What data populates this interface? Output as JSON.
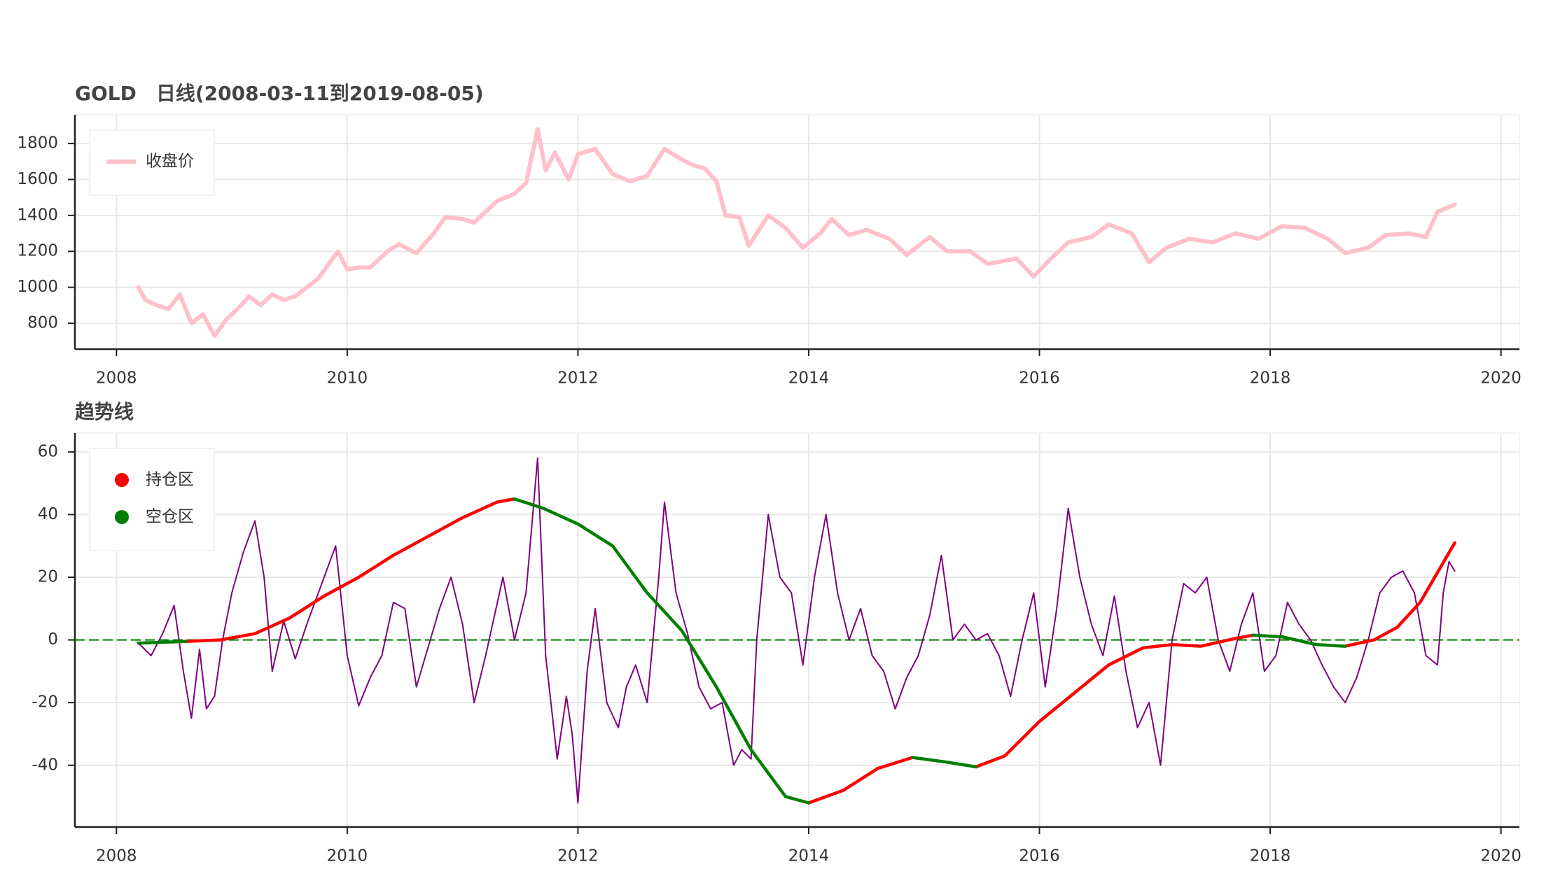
{
  "chart_data": [
    {
      "type": "line",
      "title": "GOLD　日线(2008-03-11到2019-08-05)",
      "xlim": [
        2007.64,
        2020.16
      ],
      "xticks": [
        2008,
        2010,
        2012,
        2014,
        2016,
        2018,
        2020
      ],
      "ylim": [
        656,
        1960
      ],
      "yticks": [
        800,
        1000,
        1200,
        1400,
        1600,
        1800
      ],
      "grid": true,
      "legend": "upper left",
      "legend_marker": "line",
      "series": [
        {
          "name": "收盘价",
          "color": "#ffc0cb",
          "x": [
            2008.19,
            2008.25,
            2008.35,
            2008.45,
            2008.55,
            2008.65,
            2008.75,
            2008.85,
            2008.95,
            2009.05,
            2009.15,
            2009.25,
            2009.35,
            2009.45,
            2009.55,
            2009.65,
            2009.75,
            2009.92,
            2010.0,
            2010.1,
            2010.2,
            2010.35,
            2010.45,
            2010.6,
            2010.75,
            2010.85,
            2011.0,
            2011.1,
            2011.3,
            2011.45,
            2011.55,
            2011.65,
            2011.72,
            2011.8,
            2011.92,
            2012.0,
            2012.15,
            2012.3,
            2012.45,
            2012.6,
            2012.75,
            2012.9,
            2013.0,
            2013.1,
            2013.2,
            2013.28,
            2013.4,
            2013.48,
            2013.55,
            2013.65,
            2013.8,
            2013.95,
            2014.1,
            2014.2,
            2014.35,
            2014.5,
            2014.7,
            2014.85,
            2015.05,
            2015.2,
            2015.4,
            2015.55,
            2015.8,
            2015.95,
            2016.1,
            2016.25,
            2016.45,
            2016.6,
            2016.8,
            2016.95,
            2017.1,
            2017.3,
            2017.5,
            2017.7,
            2017.9,
            2018.1,
            2018.3,
            2018.5,
            2018.65,
            2018.85,
            2019.0,
            2019.2,
            2019.35,
            2019.45,
            2019.6
          ],
          "values": [
            1000,
            930,
            900,
            880,
            960,
            800,
            850,
            730,
            820,
            880,
            950,
            900,
            960,
            930,
            950,
            1000,
            1050,
            1200,
            1100,
            1110,
            1110,
            1200,
            1240,
            1190,
            1300,
            1390,
            1380,
            1360,
            1480,
            1520,
            1580,
            1880,
            1650,
            1750,
            1600,
            1740,
            1770,
            1630,
            1590,
            1620,
            1770,
            1710,
            1680,
            1660,
            1590,
            1400,
            1390,
            1230,
            1300,
            1400,
            1330,
            1220,
            1300,
            1380,
            1290,
            1320,
            1270,
            1180,
            1280,
            1200,
            1200,
            1130,
            1160,
            1060,
            1160,
            1250,
            1280,
            1350,
            1300,
            1140,
            1220,
            1270,
            1250,
            1300,
            1270,
            1340,
            1330,
            1270,
            1190,
            1220,
            1290,
            1300,
            1280,
            1420,
            1460
          ]
        }
      ]
    },
    {
      "type": "line",
      "title": "趋势线",
      "xlim": [
        2007.64,
        2020.16
      ],
      "xticks": [
        2008,
        2010,
        2012,
        2014,
        2016,
        2018,
        2020
      ],
      "ylim": [
        -59.7,
        66
      ],
      "yticks": [
        -40,
        -20,
        0,
        20,
        40,
        60
      ],
      "grid": true,
      "legend": "upper left",
      "legend_marker": "circle",
      "hline": {
        "value": 0,
        "color": "green"
      },
      "series": [
        {
          "color": "purple",
          "x": [
            2008.19,
            2008.3,
            2008.4,
            2008.5,
            2008.58,
            2008.65,
            2008.72,
            2008.78,
            2008.85,
            2008.92,
            2009.0,
            2009.1,
            2009.2,
            2009.28,
            2009.35,
            2009.45,
            2009.55,
            2009.65,
            2009.75,
            2009.9,
            2010.0,
            2010.1,
            2010.2,
            2010.3,
            2010.4,
            2010.5,
            2010.6,
            2010.68,
            2010.8,
            2010.9,
            2011.0,
            2011.1,
            2011.2,
            2011.35,
            2011.45,
            2011.55,
            2011.65,
            2011.72,
            2011.82,
            2011.9,
            2011.95,
            2012.0,
            2012.08,
            2012.15,
            2012.25,
            2012.35,
            2012.42,
            2012.5,
            2012.6,
            2012.7,
            2012.75,
            2012.85,
            2012.95,
            2013.05,
            2013.15,
            2013.25,
            2013.35,
            2013.42,
            2013.5,
            2013.55,
            2013.65,
            2013.75,
            2013.85,
            2013.95,
            2014.05,
            2014.15,
            2014.25,
            2014.35,
            2014.45,
            2014.55,
            2014.65,
            2014.75,
            2014.85,
            2014.95,
            2015.05,
            2015.15,
            2015.25,
            2015.35,
            2015.45,
            2015.55,
            2015.65,
            2015.75,
            2015.85,
            2015.95,
            2016.05,
            2016.15,
            2016.25,
            2016.35,
            2016.45,
            2016.55,
            2016.65,
            2016.75,
            2016.85,
            2016.95,
            2017.05,
            2017.15,
            2017.25,
            2017.35,
            2017.45,
            2017.55,
            2017.65,
            2017.75,
            2017.85,
            2017.95,
            2018.05,
            2018.15,
            2018.25,
            2018.35,
            2018.45,
            2018.55,
            2018.65,
            2018.75,
            2018.85,
            2018.95,
            2019.05,
            2019.15,
            2019.25,
            2019.35,
            2019.45,
            2019.5,
            2019.55,
            2019.6
          ],
          "values": [
            -1,
            -5,
            2,
            11,
            -10,
            -25,
            -3,
            -22,
            -18,
            0,
            15,
            28,
            38,
            20,
            -10,
            6,
            -6,
            5,
            15,
            30,
            -5,
            -21,
            -12,
            -5,
            12,
            10,
            -15,
            -5,
            10,
            20,
            5,
            -20,
            -5,
            20,
            0,
            15,
            58,
            -5,
            -38,
            -18,
            -30,
            -52,
            -10,
            10,
            -20,
            -28,
            -15,
            -8,
            -20,
            20,
            44,
            15,
            2,
            -15,
            -22,
            -20,
            -40,
            -35,
            -38,
            0,
            40,
            20,
            15,
            -8,
            20,
            40,
            15,
            0,
            10,
            -5,
            -10,
            -22,
            -12,
            -5,
            8,
            27,
            0,
            5,
            0,
            2,
            -5,
            -18,
            0,
            15,
            -15,
            10,
            42,
            20,
            5,
            -5,
            14,
            -10,
            -28,
            -20,
            -40,
            0,
            18,
            15,
            20,
            0,
            -10,
            5,
            15,
            -10,
            -5,
            12,
            5,
            0,
            -8,
            -15,
            -20,
            -12,
            0,
            15,
            20,
            22,
            15,
            -5,
            -8,
            15,
            25,
            22
          ]
        },
        {
          "name": "持仓区",
          "color": "red",
          "x": [
            2008.19,
            2008.6,
            2008.9,
            2009.2,
            2009.5,
            2009.8,
            2010.1,
            2010.4,
            2010.7,
            2011.0,
            2011.3,
            2011.45,
            2011.7,
            2012.0,
            2012.3,
            2012.6,
            2012.9,
            2013.2,
            2013.5,
            2013.8,
            2014.0,
            2014.3,
            2014.6,
            2014.9,
            2015.2,
            2015.45,
            2015.7,
            2016.0,
            2016.3,
            2016.6,
            2016.9,
            2017.15,
            2017.4,
            2017.7,
            2017.85,
            2018.1,
            2018.4,
            2018.65,
            2018.9,
            2019.1,
            2019.3,
            2019.6
          ],
          "values": [
            null,
            -0.5,
            0,
            2,
            7,
            14,
            20,
            27,
            33,
            39,
            44,
            45,
            null,
            null,
            null,
            null,
            null,
            null,
            null,
            null,
            -52,
            -48,
            -41,
            -37.5,
            null,
            -40.5,
            -37,
            -26,
            -17,
            -8,
            -2.5,
            -1.5,
            -2,
            0.5,
            1.5,
            null,
            null,
            -2,
            0,
            4,
            12,
            31
          ]
        },
        {
          "name": "空仓区",
          "color": "green",
          "x": [
            2008.19,
            2008.6,
            2008.9,
            2009.2,
            2009.5,
            2009.8,
            2010.1,
            2010.4,
            2010.7,
            2011.0,
            2011.3,
            2011.45,
            2011.7,
            2012.0,
            2012.3,
            2012.6,
            2012.9,
            2013.2,
            2013.5,
            2013.8,
            2014.0,
            2014.3,
            2014.6,
            2014.9,
            2015.2,
            2015.45,
            2015.7,
            2016.0,
            2016.3,
            2016.6,
            2016.9,
            2017.15,
            2017.4,
            2017.7,
            2017.85,
            2018.1,
            2018.4,
            2018.65,
            2018.9,
            2019.1,
            2019.3,
            2019.6
          ],
          "values": [
            -1,
            -0.5,
            null,
            null,
            null,
            null,
            null,
            null,
            null,
            null,
            null,
            45,
            42,
            37,
            30,
            15,
            3,
            -15,
            -35,
            -50,
            -52,
            null,
            null,
            -37.5,
            -39,
            -40.5,
            null,
            null,
            null,
            null,
            null,
            null,
            null,
            null,
            1.5,
            1,
            -1.5,
            -2,
            null,
            null,
            null,
            null
          ]
        }
      ]
    }
  ]
}
